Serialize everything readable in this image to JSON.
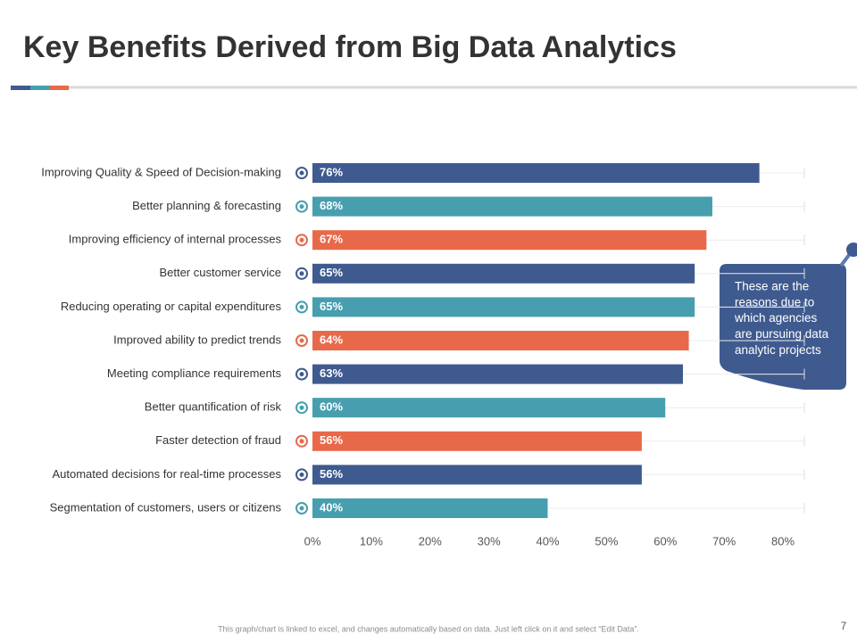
{
  "header": {
    "title": "Key Benefits Derived from Big Data Analytics"
  },
  "chart_data": {
    "type": "bar",
    "orientation": "horizontal",
    "categories": [
      "Improving Quality & Speed of Decision-making",
      "Better planning & forecasting",
      "Improving efficiency of internal processes",
      "Better customer service",
      "Reducing operating or capital expenditures",
      "Improved ability to predict trends",
      "Meeting compliance requirements",
      "Better quantification of risk",
      "Faster detection of fraud",
      "Automated decisions for real-time processes",
      "Segmentation of customers, users or citizens"
    ],
    "values": [
      76,
      68,
      67,
      65,
      65,
      64,
      63,
      60,
      56,
      56,
      40
    ],
    "value_labels": [
      "76%",
      "68%",
      "67%",
      "65%",
      "65%",
      "64%",
      "63%",
      "60%",
      "56%",
      "56%",
      "40%"
    ],
    "colors": [
      "#3f5a8f",
      "#479eae",
      "#e8694a",
      "#3f5a8f",
      "#479eae",
      "#e8694a",
      "#3f5a8f",
      "#479eae",
      "#e8694a",
      "#3f5a8f",
      "#479eae"
    ],
    "xlim": [
      0,
      80
    ],
    "xticks": [
      {
        "value": 0,
        "label": "0%"
      },
      {
        "value": 10,
        "label": "10%"
      },
      {
        "value": 20,
        "label": "20%"
      },
      {
        "value": 30,
        "label": "30%"
      },
      {
        "value": 40,
        "label": "40%"
      },
      {
        "value": 50,
        "label": "50%"
      },
      {
        "value": 60,
        "label": "60%"
      },
      {
        "value": 70,
        "label": "70%"
      },
      {
        "value": 80,
        "label": "80%"
      }
    ]
  },
  "callout": {
    "text": [
      "These are the",
      "reasons due to",
      "which agencies",
      "are pursuing data",
      "analytic projects"
    ]
  },
  "footer": {
    "note": "This graph/chart is linked to excel, and changes automatically based on data. Just left click on it and select “Edit Data”.",
    "page": "7"
  }
}
